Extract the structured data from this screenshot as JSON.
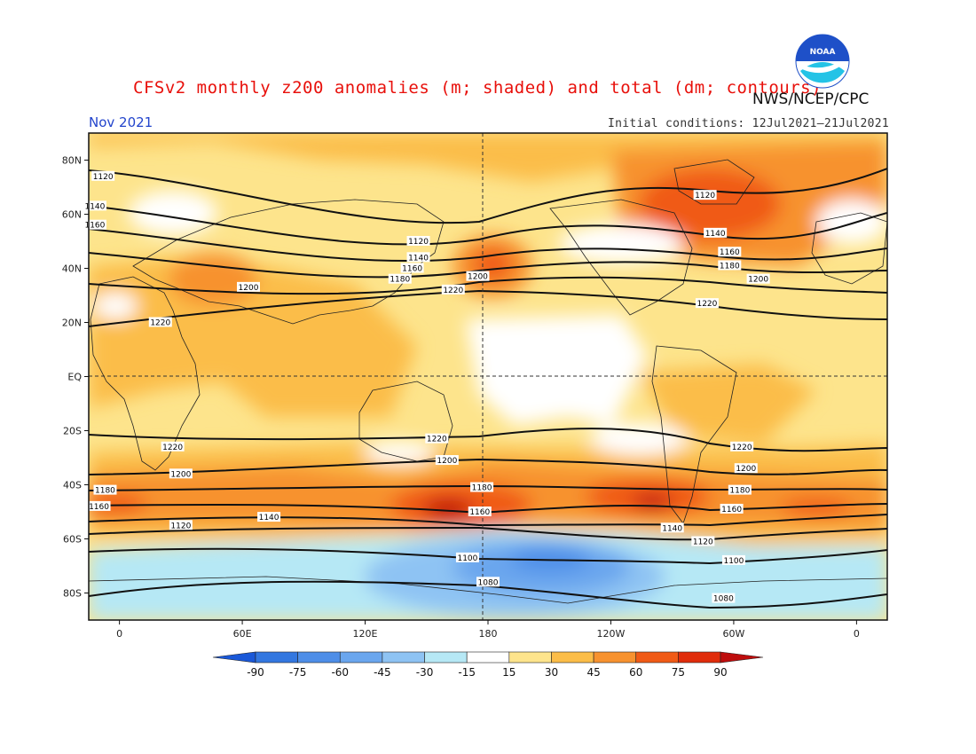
{
  "title": "CFSv2 monthly z200 anomalies (m; shaded) and total (dm; contours)",
  "agency": "NWS/NCEP/CPC",
  "valid_month": "Nov 2021",
  "initial_conditions": "Initial conditions: 12Jul2021–21Jul2021",
  "logo": {
    "icon": "noaa-logo-icon",
    "text": "NOAA",
    "color": "#1e50c8"
  },
  "chart_data": {
    "type": "heatmap",
    "projection": "cylindrical equidistant",
    "lat_ticks": [
      "80N",
      "60N",
      "40N",
      "20N",
      "EQ",
      "20S",
      "40S",
      "60S",
      "80S"
    ],
    "lon_ticks": [
      "0",
      "60E",
      "120E",
      "180",
      "120W",
      "60W",
      "0"
    ],
    "lat_range": [
      -90,
      90
    ],
    "lon_range": [
      -15,
      375
    ],
    "reference_lines": [
      "EQ",
      "180"
    ],
    "colorbar": {
      "ticks": [
        "-90",
        "-75",
        "-60",
        "-45",
        "-30",
        "-15",
        "15",
        "30",
        "45",
        "60",
        "75",
        "90"
      ],
      "colors": [
        "#1a58d8",
        "#3377e0",
        "#4e8ee8",
        "#6aa6ee",
        "#8ec3f3",
        "#b6e8f5",
        "#ffffff",
        "#fde48c",
        "#fbbd48",
        "#f7922f",
        "#f05a16",
        "#e02c0a",
        "#be0d0d"
      ]
    },
    "contour_levels": [
      {
        "value": "1080",
        "labels": [
          {
            "lon": 180,
            "lat": -76
          },
          {
            "lon": 295,
            "lat": -82
          }
        ]
      },
      {
        "value": "1100",
        "labels": [
          {
            "lon": 170,
            "lat": -67
          },
          {
            "lon": 300,
            "lat": -68
          }
        ]
      },
      {
        "value": "1120",
        "labels": [
          {
            "lon": -8,
            "lat": 74
          },
          {
            "lon": 146,
            "lat": 50
          },
          {
            "lon": 286,
            "lat": 67
          },
          {
            "lon": 30,
            "lat": -55
          },
          {
            "lon": 285,
            "lat": -61
          }
        ]
      },
      {
        "value": "1140",
        "labels": [
          {
            "lon": -12,
            "lat": 63
          },
          {
            "lon": 146,
            "lat": 44
          },
          {
            "lon": 291,
            "lat": 53
          },
          {
            "lon": 73,
            "lat": -52
          },
          {
            "lon": 270,
            "lat": -56
          }
        ]
      },
      {
        "value": "1160",
        "labels": [
          {
            "lon": -12,
            "lat": 56
          },
          {
            "lon": 143,
            "lat": 40
          },
          {
            "lon": 298,
            "lat": 46
          },
          {
            "lon": -10,
            "lat": -48
          },
          {
            "lon": 176,
            "lat": -50
          },
          {
            "lon": 299,
            "lat": -49
          }
        ]
      },
      {
        "value": "1180",
        "labels": [
          {
            "lon": 137,
            "lat": 36
          },
          {
            "lon": 298,
            "lat": 41
          },
          {
            "lon": -7,
            "lat": -42
          },
          {
            "lon": 177,
            "lat": -41
          },
          {
            "lon": 303,
            "lat": -42
          }
        ]
      },
      {
        "value": "1200",
        "labels": [
          {
            "lon": 63,
            "lat": 33
          },
          {
            "lon": 175,
            "lat": 37
          },
          {
            "lon": 312,
            "lat": 36
          },
          {
            "lon": 30,
            "lat": -36
          },
          {
            "lon": 160,
            "lat": -31
          },
          {
            "lon": 306,
            "lat": -34
          }
        ]
      },
      {
        "value": "1220",
        "labels": [
          {
            "lon": 20,
            "lat": 20
          },
          {
            "lon": 163,
            "lat": 32
          },
          {
            "lon": 287,
            "lat": 27
          },
          {
            "lon": 26,
            "lat": -26
          },
          {
            "lon": 155,
            "lat": -23
          },
          {
            "lon": 304,
            "lat": -26
          }
        ]
      }
    ],
    "anomaly_areas": [
      {
        "label": "Arctic ridge over N. Atlantic / Greenland",
        "level": "60 to 75",
        "region": "60N-90N, 80W-0"
      },
      {
        "label": "N. Pacific high",
        "level": "60 to 75",
        "region": "40N-50N, 180"
      },
      {
        "label": "S. Pacific ridge near New Zealand",
        "level": "75 to 90",
        "region": "45S-55S, 170E-175W"
      },
      {
        "label": "S. Pacific ridge east",
        "level": "75 to 90",
        "region": "45S-55S, 100W-70W"
      },
      {
        "label": "Antarctic low",
        "level": "-45 to -60",
        "region": "60S-75S, 180-120W"
      },
      {
        "label": "Arctic negative anomaly",
        "level": "-15 to 15",
        "region": "55N-75N, 20E-50E"
      }
    ]
  }
}
